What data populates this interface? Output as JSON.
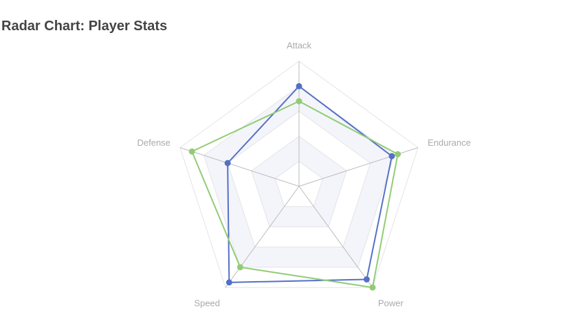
{
  "chart_data": {
    "type": "radar",
    "title": "Radar Chart: Player Stats",
    "indicators": [
      "Attack",
      "Endurance",
      "Power",
      "Speed",
      "Defense"
    ],
    "max": 100,
    "levels": 5,
    "series": [
      {
        "values": [
          80,
          78,
          92,
          95,
          60
        ],
        "color": "#5470c6"
      },
      {
        "values": [
          68,
          83,
          100,
          80,
          90
        ],
        "color": "#91cc75"
      }
    ],
    "legend": "none",
    "split_area_colors": [
      "#ffffff",
      "#f4f5fa"
    ]
  }
}
